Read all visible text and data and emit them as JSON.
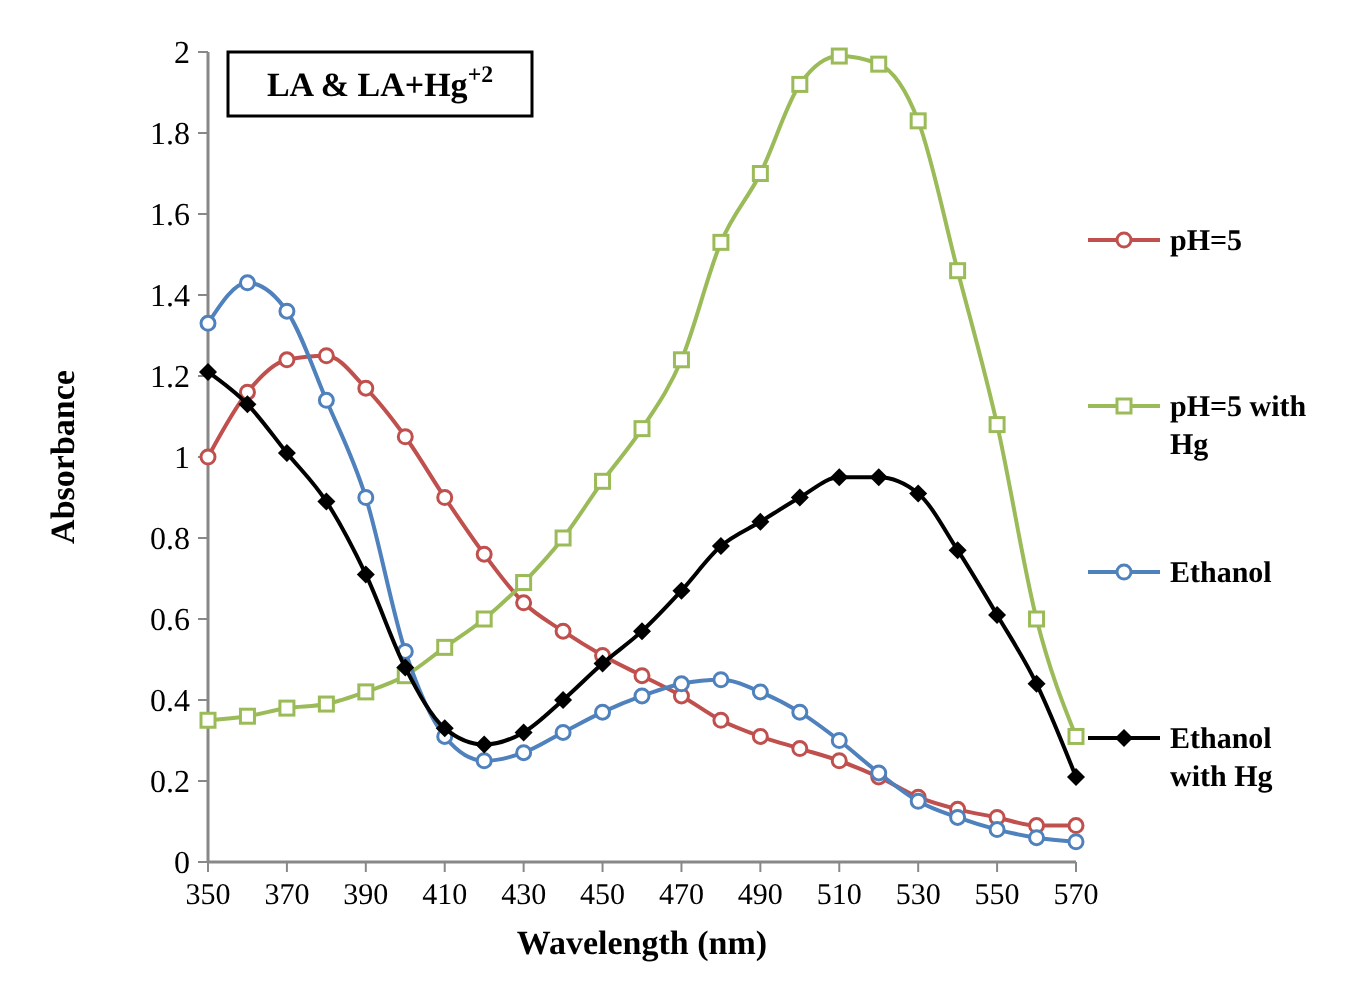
{
  "chart_data": {
    "type": "line",
    "title": "LA & LA+Hg$^{+2}$",
    "xlabel": "Wavelength (nm)",
    "ylabel": "Absorbance",
    "x": [
      350,
      360,
      370,
      380,
      390,
      400,
      410,
      420,
      430,
      440,
      450,
      460,
      470,
      480,
      490,
      500,
      510,
      520,
      530,
      540,
      550,
      560,
      570
    ],
    "xlim": [
      350,
      570
    ],
    "xticks": [
      350,
      370,
      390,
      410,
      430,
      450,
      470,
      490,
      510,
      530,
      550,
      570
    ],
    "ylim": [
      0,
      2
    ],
    "yticks": [
      0,
      0.2,
      0.4,
      0.6,
      0.8,
      1,
      1.2,
      1.4,
      1.6,
      1.8,
      2
    ],
    "grid": false,
    "legend": "right",
    "line_style": "solid",
    "series": [
      {
        "name": "pH=5",
        "color": "#c0504d",
        "marker": "circle",
        "values": [
          1.0,
          1.16,
          1.24,
          1.25,
          1.17,
          1.05,
          0.9,
          0.76,
          0.64,
          0.57,
          0.51,
          0.46,
          0.41,
          0.35,
          0.31,
          0.28,
          0.25,
          0.21,
          0.16,
          0.13,
          0.11,
          0.09,
          0.09
        ]
      },
      {
        "name": "pH=5 with Hg",
        "color": "#9bbb59",
        "marker": "square",
        "values": [
          0.35,
          0.36,
          0.38,
          0.39,
          0.42,
          0.46,
          0.53,
          0.6,
          0.69,
          0.8,
          0.94,
          1.07,
          1.24,
          1.53,
          1.7,
          1.92,
          1.99,
          1.97,
          1.83,
          1.46,
          1.08,
          0.6,
          0.31
        ]
      },
      {
        "name": "Ethanol",
        "color": "#4f81bd",
        "marker": "circle",
        "values": [
          1.33,
          1.43,
          1.36,
          1.14,
          0.9,
          0.52,
          0.31,
          0.25,
          0.27,
          0.32,
          0.37,
          0.41,
          0.44,
          0.45,
          0.42,
          0.37,
          0.3,
          0.22,
          0.15,
          0.11,
          0.08,
          0.06,
          0.05
        ]
      },
      {
        "name": "Ethanol with Hg",
        "color": "#000000",
        "marker": "diamond",
        "values": [
          1.21,
          1.13,
          1.01,
          0.89,
          0.71,
          0.48,
          0.33,
          0.29,
          0.32,
          0.4,
          0.49,
          0.57,
          0.67,
          0.78,
          0.84,
          0.9,
          0.95,
          0.95,
          0.91,
          0.77,
          0.61,
          0.44,
          0.21
        ]
      }
    ]
  }
}
